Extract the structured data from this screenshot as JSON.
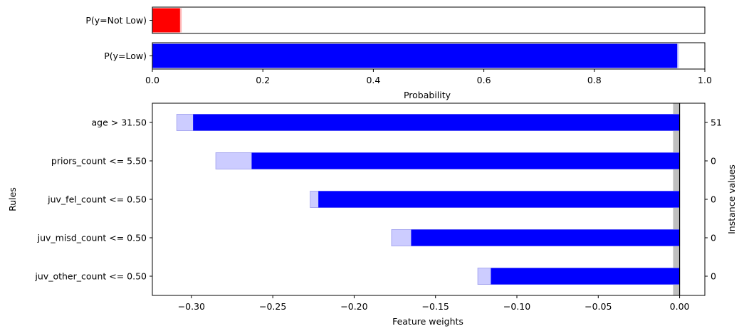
{
  "chart_data": [
    {
      "type": "bar",
      "orientation": "horizontal",
      "categories": [
        "P(y=Not Low)",
        "P(y=Low)"
      ],
      "series": [
        {
          "values": [
            0.05,
            0.95
          ],
          "colors": [
            "#ff0000",
            "#0000ff"
          ]
        },
        {
          "values": [
            0.053,
            0.953
          ],
          "colors": [
            "#ffb3b3",
            "#ccccff"
          ]
        }
      ],
      "xlabel": "Probability",
      "xlim": [
        0,
        1
      ],
      "xticks": [
        0,
        0.2,
        0.4,
        0.6,
        0.8,
        1
      ],
      "xtick_labels": [
        "0.0",
        "0.2",
        "0.4",
        "0.6",
        "0.8",
        "1.0"
      ]
    },
    {
      "type": "bar",
      "orientation": "horizontal",
      "categories": [
        "age > 31.50",
        "priors_count <= 5.50",
        "juv_fel_count <= 0.50",
        "juv_misd_count <= 0.50",
        "juv_other_count <= 0.50"
      ],
      "series": [
        {
          "values": [
            -0.299,
            -0.263,
            -0.222,
            -0.165,
            -0.116
          ],
          "color": "#0000ff"
        },
        {
          "values": [
            -0.309,
            -0.285,
            -0.227,
            -0.177,
            -0.124
          ],
          "color": "#ccccff"
        }
      ],
      "instance_values": [
        "51",
        "0",
        "0",
        "0",
        "0"
      ],
      "reference_band": [
        -0.004,
        0.0
      ],
      "xlabel": "Feature weights",
      "ylabel": "Rules",
      "right_ylabel": "Instance values",
      "xlim": [
        -0.324,
        0.0155
      ],
      "xticks": [
        -0.3,
        -0.25,
        -0.2,
        -0.15,
        -0.1,
        -0.05,
        0.0
      ],
      "xtick_labels": [
        "−0.30",
        "−0.25",
        "−0.20",
        "−0.15",
        "−0.10",
        "−0.05",
        "0.00"
      ]
    }
  ]
}
